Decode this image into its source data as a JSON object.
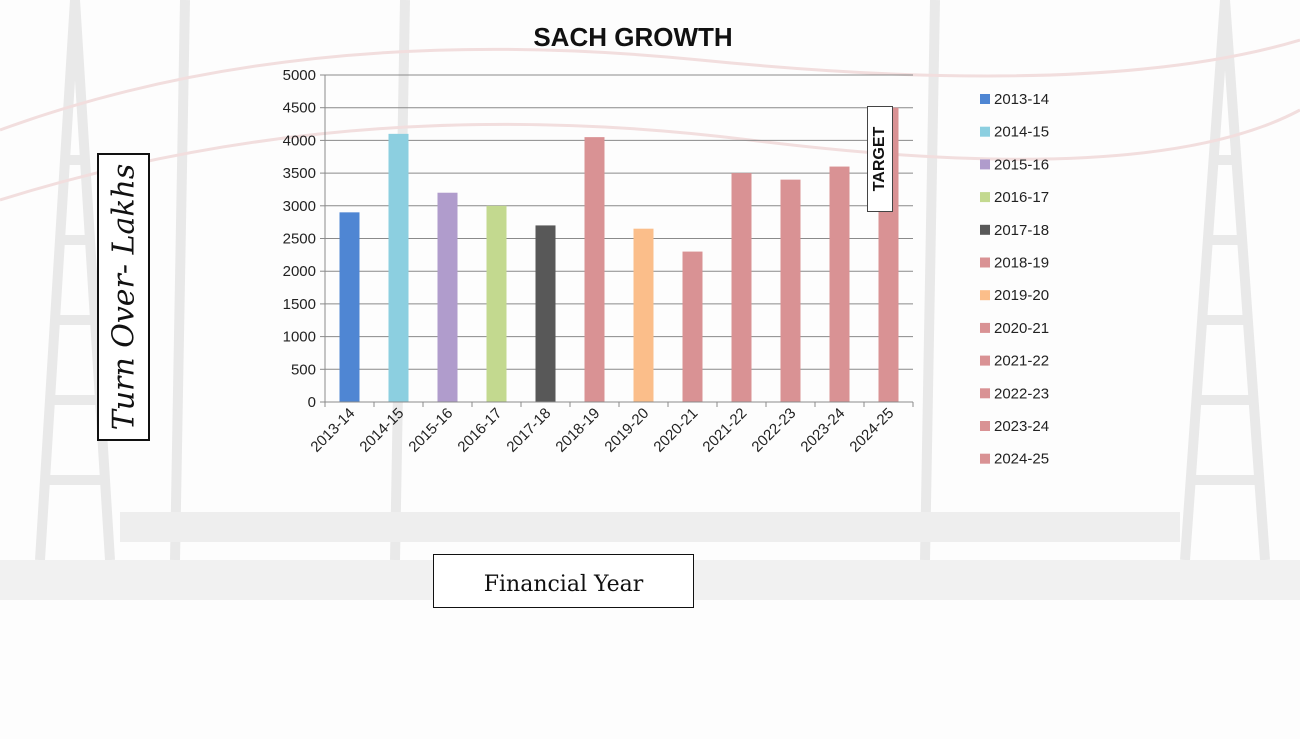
{
  "chart_data": {
    "type": "bar",
    "title": "SACH GROWTH",
    "xlabel": "Financial Year",
    "ylabel": "Turn Over- Lakhs",
    "ylim": [
      0,
      5000
    ],
    "yticks": [
      "0",
      "500",
      "1000",
      "1500",
      "2000",
      "2500",
      "3000",
      "3500",
      "4000",
      "4500",
      "5000"
    ],
    "categories": [
      "2013-14",
      "2014-15",
      "2015-16",
      "2016-17",
      "2017-18",
      "2018-19",
      "2019-20",
      "2020-21",
      "2021-22",
      "2022-23",
      "2023-24",
      "2024-25"
    ],
    "values": [
      2900,
      4100,
      3200,
      3000,
      2700,
      4050,
      2650,
      2300,
      3500,
      3400,
      3600,
      4500
    ],
    "colors": [
      "#4f86d3",
      "#8ccfe0",
      "#b09ccc",
      "#c3d98f",
      "#585858",
      "#d99294",
      "#fbbe8a",
      "#d99294",
      "#d99294",
      "#d99294",
      "#d99294",
      "#d99294"
    ],
    "annotation": "TARGET",
    "grid": true,
    "legend": "right"
  }
}
